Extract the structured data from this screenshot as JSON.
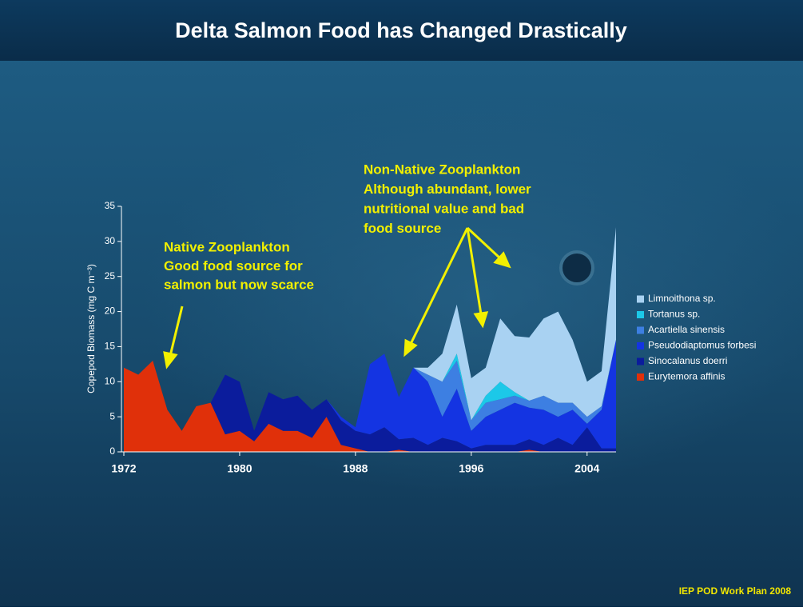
{
  "chart_data": {
    "type": "stacked_area",
    "title": "Delta Salmon Food has Changed Drastically",
    "y_label": "Copepod Biomass (mg C m⁻³)",
    "annotations": [
      [
        "Native Zooplankton",
        "Good food source for",
        "salmon but now scarce"
      ],
      [
        "Non-Native Zooplankton",
        "Although abundant, lower",
        "nutritional value and bad",
        "food source"
      ]
    ],
    "source": "IEP POD Work Plan 2008",
    "x": [
      1972,
      1973,
      1974,
      1975,
      1976,
      1977,
      1978,
      1979,
      1980,
      1981,
      1982,
      1983,
      1984,
      1985,
      1986,
      1987,
      1988,
      1989,
      1990,
      1991,
      1992,
      1993,
      1994,
      1995,
      1996,
      1997,
      1998,
      1999,
      2000,
      2001,
      2002,
      2003,
      2004,
      2005,
      2006
    ],
    "xlim": [
      1972,
      2006
    ],
    "xticks": [
      1972,
      1980,
      1988,
      1996,
      2004
    ],
    "ylim": [
      0,
      35
    ],
    "yticks": [
      0,
      5,
      10,
      15,
      20,
      25,
      30,
      35
    ],
    "series": [
      {
        "name": "Eurytemora affinis",
        "color": "#e0300a",
        "values": [
          12,
          11,
          13,
          6,
          3,
          6.5,
          7,
          2.5,
          3,
          1.5,
          4,
          3,
          3,
          2,
          5,
          1,
          0.5,
          0,
          0,
          0.3,
          0,
          0,
          0,
          0,
          0,
          0,
          0,
          0,
          0.3,
          0,
          0,
          0,
          0,
          0,
          0
        ]
      },
      {
        "name": "Sinocalanus doerri",
        "color": "#0b1c9c",
        "values": [
          0,
          0,
          0,
          0,
          0,
          0,
          0,
          8.5,
          7,
          1.5,
          4.5,
          4.5,
          5,
          4,
          2.5,
          3.5,
          2.5,
          2.5,
          3.5,
          1.5,
          2,
          1,
          2,
          1.5,
          0.5,
          1,
          1,
          1,
          1.5,
          1,
          2,
          1,
          3.5,
          0.5,
          0.5
        ]
      },
      {
        "name": "Pseudodiaptomus forbesi",
        "color": "#1434e2",
        "values": [
          0,
          0,
          0,
          0,
          0,
          0,
          0,
          0,
          0,
          0,
          0,
          0,
          0,
          0,
          0,
          0.5,
          0.5,
          10,
          10.5,
          6,
          10,
          9,
          3,
          7.5,
          2.5,
          4,
          5,
          6,
          4.5,
          5,
          3,
          5,
          0.5,
          5.5,
          15.5
        ]
      },
      {
        "name": "Acartiella sinensis",
        "color": "#3d7fe2",
        "values": [
          0,
          0,
          0,
          0,
          0,
          0,
          0,
          0,
          0,
          0,
          0,
          0,
          0,
          0,
          0,
          0,
          0,
          0,
          0,
          0,
          0,
          1,
          5,
          4,
          1.5,
          2,
          1.5,
          1,
          1,
          2,
          2,
          1,
          1,
          0.5,
          0
        ]
      },
      {
        "name": "Tortanus sp.",
        "color": "#1cc8e8",
        "values": [
          0,
          0,
          0,
          0,
          0,
          0,
          0,
          0,
          0,
          0,
          0,
          0,
          0,
          0,
          0,
          0,
          0,
          0,
          0,
          0,
          0,
          0,
          0,
          1,
          0,
          1,
          2.5,
          0.5,
          0,
          0,
          0,
          0,
          0,
          0,
          0
        ]
      },
      {
        "name": "Limnoithona sp.",
        "color": "#a9d2f2",
        "values": [
          0,
          0,
          0,
          0,
          0,
          0,
          0,
          0,
          0,
          0,
          0,
          0,
          0,
          0,
          0,
          0,
          0,
          0,
          0,
          0,
          0,
          1,
          4,
          7,
          6,
          4,
          9,
          8,
          9,
          11,
          13,
          9,
          5,
          5,
          16
        ]
      }
    ]
  }
}
